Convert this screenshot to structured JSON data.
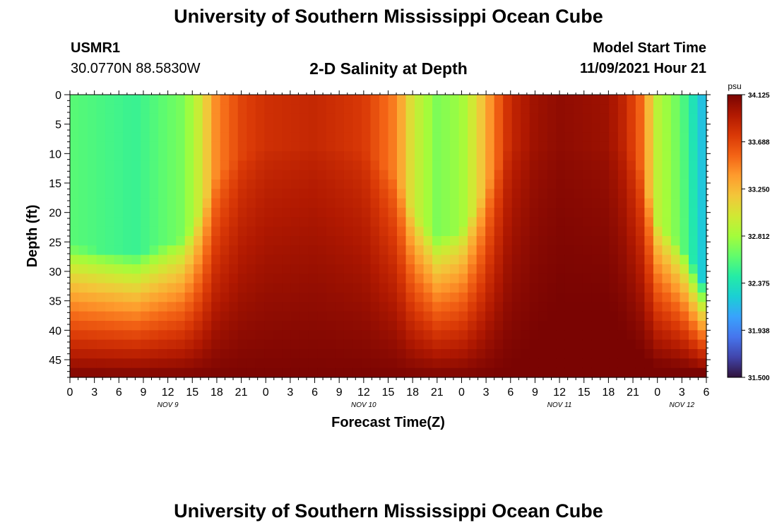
{
  "header": {
    "title": "University of Southern Mississippi Ocean Cube",
    "station_id": "USMR1",
    "station_coords": "30.0770N  88.5830W",
    "chart_title": "2-D Salinity at Depth",
    "start_label": "Model Start Time",
    "start_value": "11/09/2021 Hour 21"
  },
  "footer": {
    "title": "University of Southern Mississippi Ocean Cube"
  },
  "chart_data": {
    "type": "heatmap",
    "xlabel": "Forecast Time(Z)",
    "ylabel": "Depth (ft)",
    "x_tick_labels": [
      "0",
      "3",
      "6",
      "9",
      "12",
      "15",
      "18",
      "21",
      "0",
      "3",
      "6",
      "9",
      "12",
      "15",
      "18",
      "21",
      "0",
      "3",
      "6",
      "9",
      "12",
      "15",
      "18",
      "21",
      "0",
      "3",
      "6"
    ],
    "x_range_hours": [
      0,
      78
    ],
    "date_labels": [
      {
        "label": "NOV 9",
        "hour": 12
      },
      {
        "label": "NOV 10",
        "hour": 36
      },
      {
        "label": "NOV 11",
        "hour": 60
      },
      {
        "label": "NOV 12",
        "hour": 75
      }
    ],
    "y_ticks": [
      0,
      5,
      10,
      15,
      20,
      25,
      30,
      35,
      40,
      45
    ],
    "ylim": [
      0,
      48
    ],
    "colorbar": {
      "unit": "psu",
      "ticks": [
        "34.125",
        "33.688",
        "33.250",
        "32.812",
        "32.375",
        "31.938",
        "31.500"
      ],
      "min": 31.5,
      "max": 34.125
    },
    "surface_salinity_by_hour": [
      [
        0,
        32.6
      ],
      [
        8,
        32.5
      ],
      [
        14,
        32.7
      ],
      [
        16,
        33.0
      ],
      [
        18,
        33.45
      ],
      [
        21,
        33.7
      ],
      [
        24,
        33.8
      ],
      [
        30,
        33.85
      ],
      [
        36,
        33.75
      ],
      [
        40,
        33.45
      ],
      [
        42,
        33.0
      ],
      [
        45,
        32.7
      ],
      [
        48,
        32.8
      ],
      [
        50,
        33.1
      ],
      [
        52,
        33.5
      ],
      [
        54,
        33.85
      ],
      [
        57,
        34.0
      ],
      [
        60,
        34.05
      ],
      [
        66,
        34.0
      ],
      [
        68,
        33.85
      ],
      [
        70,
        33.55
      ],
      [
        72,
        32.9
      ],
      [
        75,
        32.6
      ],
      [
        78,
        32.1
      ]
    ],
    "bottom_salinity_psu": 34.12,
    "colors": {
      "ramp": [
        "#30123b",
        "#4145ab",
        "#4675ed",
        "#39a2fc",
        "#1bcfd4",
        "#24eca6",
        "#61fc6c",
        "#a4fc3b",
        "#d1e834",
        "#f3c63a",
        "#fe9b2d",
        "#f36315",
        "#d93806",
        "#b11901",
        "#7a0402"
      ]
    }
  }
}
